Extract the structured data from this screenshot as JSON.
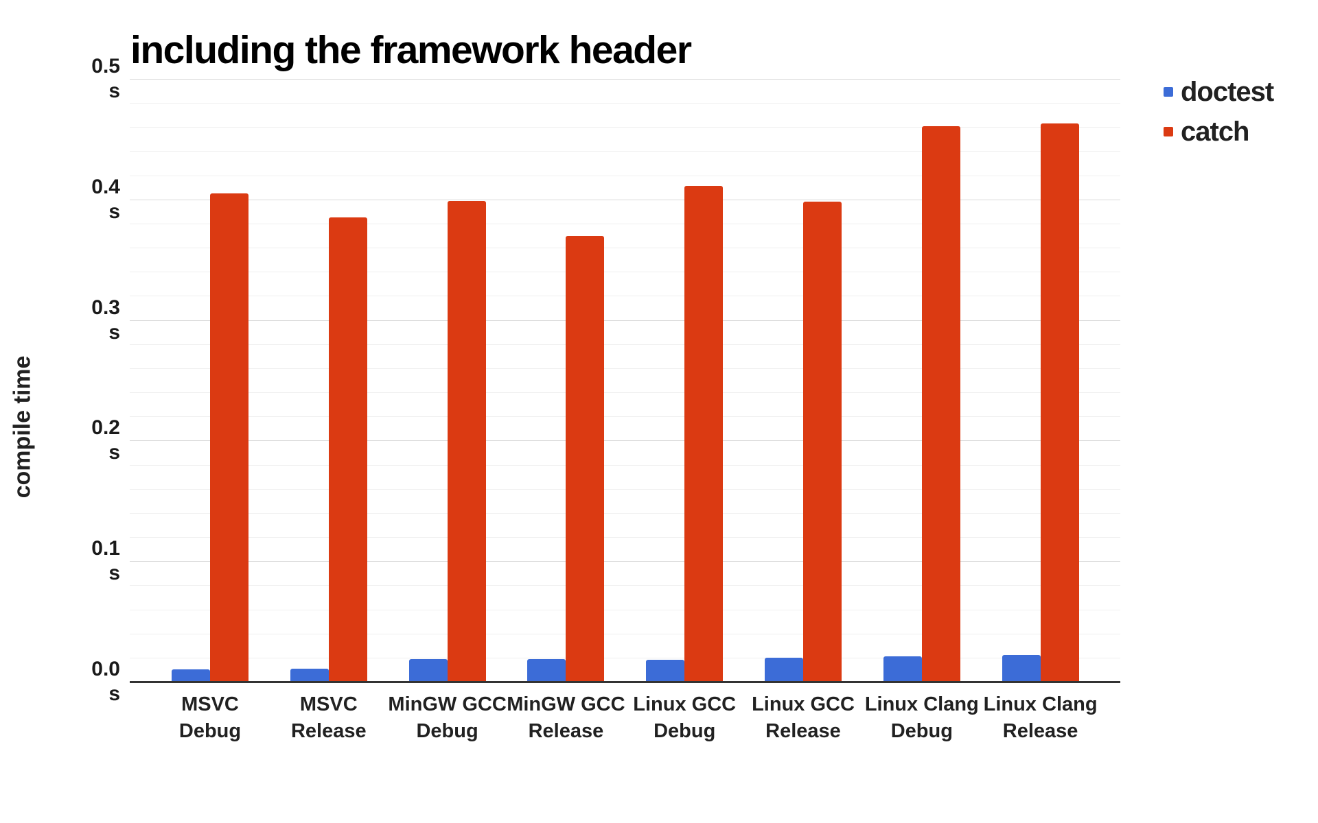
{
  "chart": {
    "title": "including the framework header",
    "y_axis_title": "compile time",
    "background_color": "#ffffff"
  },
  "chart_data": {
    "type": "bar",
    "title": "including the framework header",
    "xlabel": "",
    "ylabel": "compile time",
    "ylim": [
      0,
      0.5
    ],
    "y_major_step": 0.1,
    "y_minor_step": 0.02,
    "y_tick_unit": "s",
    "y_tick_labels": [
      "0.0",
      "0.1",
      "0.2",
      "0.3",
      "0.4",
      "0.5"
    ],
    "grid": "on",
    "legend_position": "right",
    "categories": [
      "MSVC Debug",
      "MSVC Release",
      "MinGW GCC Debug",
      "MinGW GCC Release",
      "Linux GCC Debug",
      "Linux GCC Release",
      "Linux Clang Debug",
      "Linux Clang Release"
    ],
    "category_label_lines": [
      [
        "MSVC",
        "Debug"
      ],
      [
        "MSVC",
        "Release"
      ],
      [
        "MinGW GCC",
        "Debug"
      ],
      [
        "MinGW GCC",
        "Release"
      ],
      [
        "Linux GCC",
        "Debug"
      ],
      [
        "Linux GCC",
        "Release"
      ],
      [
        "Linux Clang",
        "Debug"
      ],
      [
        "Linux Clang",
        "Release"
      ]
    ],
    "series": [
      {
        "name": "doctest",
        "color": "#3c6cd7",
        "values": [
          0.01,
          0.011,
          0.019,
          0.019,
          0.018,
          0.02,
          0.021,
          0.022
        ]
      },
      {
        "name": "catch",
        "color": "#db3a12",
        "values": [
          0.405,
          0.385,
          0.399,
          0.37,
          0.411,
          0.398,
          0.461,
          0.463
        ]
      }
    ],
    "axis_colors": {
      "major_grid": "#d8d8d8",
      "minor_grid": "#efefef",
      "baseline": "#333333"
    }
  }
}
